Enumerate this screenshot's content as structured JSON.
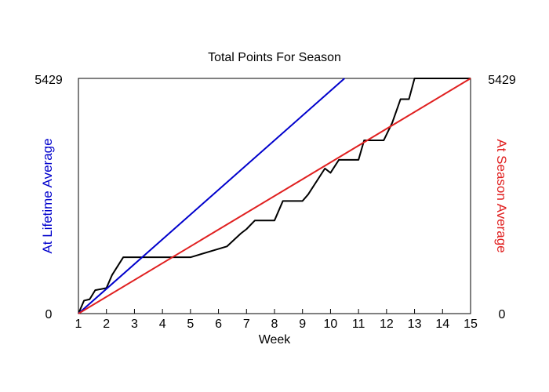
{
  "chart_data": {
    "type": "line",
    "title": "Total Points For Season",
    "xlabel": "Week",
    "ylabel_left": "At Lifetime Average",
    "ylabel_right": "At Season Average",
    "xlim": [
      1,
      15
    ],
    "ylim": [
      0,
      5429
    ],
    "x_ticks": [
      "1",
      "2",
      "3",
      "4",
      "5",
      "6",
      "7",
      "8",
      "9",
      "10",
      "11",
      "12",
      "13",
      "14",
      "15"
    ],
    "y_tick_labels": {
      "min": "0",
      "max": "5429"
    },
    "grid": false,
    "colors": {
      "actual": "#000000",
      "lifetime": "#0000cc",
      "season": "#e02020",
      "left_label": "#0000cc",
      "right_label": "#e02020"
    },
    "series": [
      {
        "key": "actual",
        "style": "step",
        "x": [
          1.0,
          1.2,
          1.4,
          1.6,
          2.0,
          2.2,
          2.6,
          3.0,
          5.0,
          6.3,
          6.8,
          7.0,
          7.3,
          8.0,
          8.3,
          9.0,
          9.2,
          9.8,
          10.0,
          10.3,
          11.0,
          11.2,
          11.9,
          12.2,
          12.5,
          12.8,
          13.0,
          15.0
        ],
        "y": [
          0,
          300,
          330,
          540,
          590,
          890,
          1300,
          1300,
          1300,
          1550,
          1850,
          1950,
          2150,
          2150,
          2600,
          2600,
          2750,
          3350,
          3250,
          3550,
          3550,
          4000,
          4000,
          4400,
          4950,
          4950,
          5429,
          5429
        ]
      },
      {
        "key": "lifetime",
        "style": "line",
        "x": [
          1,
          10.5
        ],
        "y": [
          0,
          5429
        ]
      },
      {
        "key": "season",
        "style": "line",
        "x": [
          1,
          15
        ],
        "y": [
          0,
          5429
        ]
      }
    ]
  }
}
